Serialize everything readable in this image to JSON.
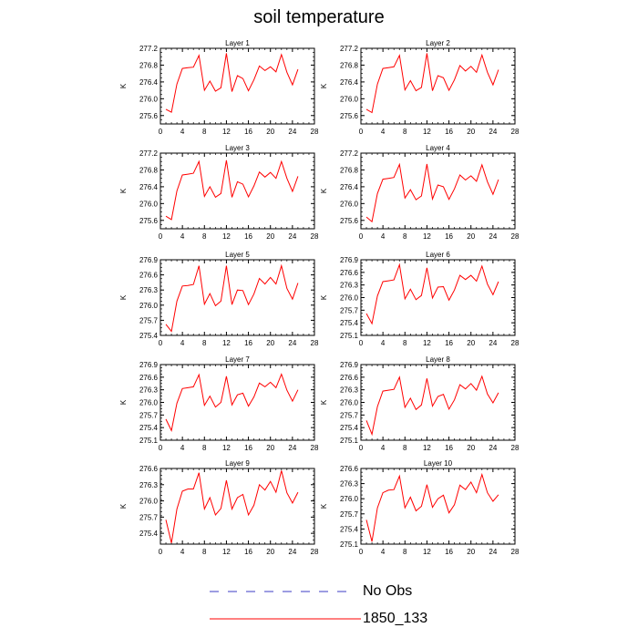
{
  "title": "soil temperature",
  "legend": [
    {
      "label": "No Obs",
      "color": "#3b3bc4",
      "style": "dashed"
    },
    {
      "label": "1850_133",
      "color": "#ff0000",
      "style": "solid"
    }
  ],
  "chart_data": [
    {
      "type": "line",
      "title": "Layer 1",
      "ylabel": "K",
      "xlabel": "",
      "xlim": [
        0,
        28
      ],
      "xticks": [
        0,
        4,
        8,
        12,
        16,
        20,
        24,
        28
      ],
      "ylim": [
        275.4,
        277.2
      ],
      "yticks": [
        275.6,
        276.0,
        276.4,
        276.8,
        277.2
      ],
      "ytick_labels": [
        "275.6",
        "276.0",
        "276.4",
        "276.8",
        "277.2"
      ],
      "series": [
        {
          "color": "#ff0000",
          "x": [
            1,
            2,
            3,
            4,
            5,
            6,
            7,
            8,
            9,
            10,
            11,
            12,
            13,
            14,
            15,
            16,
            17,
            18,
            19,
            20,
            21,
            22,
            23,
            24,
            25
          ],
          "y": [
            275.75,
            275.68,
            276.35,
            276.72,
            276.74,
            276.75,
            277.03,
            276.2,
            276.42,
            276.18,
            276.26,
            277.08,
            276.17,
            276.55,
            276.48,
            276.19,
            276.45,
            276.78,
            276.67,
            276.76,
            276.64,
            277.05,
            276.63,
            276.33,
            276.7
          ]
        }
      ]
    },
    {
      "type": "line",
      "title": "Layer 2",
      "ylabel": "K",
      "xlabel": "",
      "xlim": [
        0,
        28
      ],
      "xticks": [
        0,
        4,
        8,
        12,
        16,
        20,
        24,
        28
      ],
      "ylim": [
        275.4,
        277.2
      ],
      "yticks": [
        275.6,
        276.0,
        276.4,
        276.8,
        277.2
      ],
      "ytick_labels": [
        "275.6",
        "276.0",
        "276.4",
        "276.8",
        "277.2"
      ],
      "series": [
        {
          "color": "#ff0000",
          "x": [
            1,
            2,
            3,
            4,
            5,
            6,
            7,
            8,
            9,
            10,
            11,
            12,
            13,
            14,
            15,
            16,
            17,
            18,
            19,
            20,
            21,
            22,
            23,
            24,
            25
          ],
          "y": [
            275.75,
            275.67,
            276.35,
            276.72,
            276.74,
            276.76,
            277.03,
            276.21,
            276.43,
            276.19,
            276.27,
            277.08,
            276.19,
            276.55,
            276.5,
            276.2,
            276.45,
            276.79,
            276.66,
            276.77,
            276.63,
            277.04,
            276.63,
            276.33,
            276.69
          ]
        }
      ]
    },
    {
      "type": "line",
      "title": "Layer 3",
      "ylabel": "K",
      "xlabel": "",
      "xlim": [
        0,
        28
      ],
      "xticks": [
        0,
        4,
        8,
        12,
        16,
        20,
        24,
        28
      ],
      "ylim": [
        275.4,
        277.2
      ],
      "yticks": [
        275.6,
        276.0,
        276.4,
        276.8,
        277.2
      ],
      "ytick_labels": [
        "275.6",
        "276.0",
        "276.4",
        "276.8",
        "277.2"
      ],
      "series": [
        {
          "color": "#ff0000",
          "x": [
            1,
            2,
            3,
            4,
            5,
            6,
            7,
            8,
            9,
            10,
            11,
            12,
            13,
            14,
            15,
            16,
            17,
            18,
            19,
            20,
            21,
            22,
            23,
            24,
            25
          ],
          "y": [
            275.7,
            275.62,
            276.3,
            276.68,
            276.7,
            276.72,
            277.0,
            276.17,
            276.4,
            276.15,
            276.24,
            277.03,
            276.15,
            276.52,
            276.46,
            276.16,
            276.42,
            276.75,
            276.63,
            276.74,
            276.6,
            277.0,
            276.6,
            276.29,
            276.65
          ]
        }
      ]
    },
    {
      "type": "line",
      "title": "Layer 4",
      "ylabel": "K",
      "xlabel": "",
      "xlim": [
        0,
        28
      ],
      "xticks": [
        0,
        4,
        8,
        12,
        16,
        20,
        24,
        28
      ],
      "ylim": [
        275.4,
        277.2
      ],
      "yticks": [
        275.6,
        276.0,
        276.4,
        276.8,
        277.2
      ],
      "ytick_labels": [
        "275.6",
        "276.0",
        "276.4",
        "276.8",
        "277.2"
      ],
      "series": [
        {
          "color": "#ff0000",
          "x": [
            1,
            2,
            3,
            4,
            5,
            6,
            7,
            8,
            9,
            10,
            11,
            12,
            13,
            14,
            15,
            16,
            17,
            18,
            19,
            20,
            21,
            22,
            23,
            24,
            25
          ],
          "y": [
            275.68,
            275.57,
            276.24,
            276.58,
            276.6,
            276.62,
            276.93,
            276.13,
            276.33,
            276.09,
            276.18,
            276.94,
            276.11,
            276.44,
            276.4,
            276.1,
            276.35,
            276.68,
            276.56,
            276.66,
            276.53,
            276.92,
            276.52,
            276.22,
            276.57
          ]
        }
      ]
    },
    {
      "type": "line",
      "title": "Layer 5",
      "ylabel": "K",
      "xlabel": "",
      "xlim": [
        0,
        28
      ],
      "xticks": [
        0,
        4,
        8,
        12,
        16,
        20,
        24,
        28
      ],
      "ylim": [
        275.4,
        276.9
      ],
      "yticks": [
        275.4,
        275.7,
        276.0,
        276.3,
        276.6,
        276.9
      ],
      "ytick_labels": [
        "275.4",
        "275.7",
        "276.0",
        "276.3",
        "276.6",
        "276.9"
      ],
      "series": [
        {
          "color": "#ff0000",
          "x": [
            1,
            2,
            3,
            4,
            5,
            6,
            7,
            8,
            9,
            10,
            11,
            12,
            13,
            14,
            15,
            16,
            17,
            18,
            19,
            20,
            21,
            22,
            23,
            24,
            25
          ],
          "y": [
            275.62,
            275.48,
            276.08,
            276.38,
            276.39,
            276.41,
            276.78,
            276.02,
            276.23,
            275.99,
            276.08,
            276.78,
            276.01,
            276.3,
            276.29,
            276.01,
            276.22,
            276.53,
            276.42,
            276.55,
            276.42,
            276.78,
            276.33,
            276.12,
            276.44
          ]
        }
      ]
    },
    {
      "type": "line",
      "title": "Layer 6",
      "ylabel": "K",
      "xlabel": "",
      "xlim": [
        0,
        28
      ],
      "xticks": [
        0,
        4,
        8,
        12,
        16,
        20,
        24,
        28
      ],
      "ylim": [
        275.1,
        276.9
      ],
      "yticks": [
        275.1,
        275.4,
        275.7,
        276.0,
        276.3,
        276.6,
        276.9
      ],
      "ytick_labels": [
        "275.1",
        "275.4",
        "275.7",
        "276.0",
        "276.3",
        "276.6",
        "276.9"
      ],
      "series": [
        {
          "color": "#ff0000",
          "x": [
            1,
            2,
            3,
            4,
            5,
            6,
            7,
            8,
            9,
            10,
            11,
            12,
            13,
            14,
            15,
            16,
            17,
            18,
            19,
            20,
            21,
            22,
            23,
            24,
            25
          ],
          "y": [
            275.62,
            275.38,
            276.04,
            276.38,
            276.4,
            276.42,
            276.78,
            275.97,
            276.2,
            275.95,
            276.05,
            276.71,
            275.99,
            276.25,
            276.26,
            275.94,
            276.18,
            276.53,
            276.43,
            276.53,
            276.39,
            276.75,
            276.32,
            276.07,
            276.38
          ]
        }
      ]
    },
    {
      "type": "line",
      "title": "Layer 7",
      "ylabel": "K",
      "xlabel": "",
      "xlim": [
        0,
        28
      ],
      "xticks": [
        0,
        4,
        8,
        12,
        16,
        20,
        24,
        28
      ],
      "ylim": [
        275.1,
        276.9
      ],
      "yticks": [
        275.1,
        275.4,
        275.7,
        276.0,
        276.3,
        276.6,
        276.9
      ],
      "ytick_labels": [
        "275.1",
        "275.4",
        "275.7",
        "276.0",
        "276.3",
        "276.6",
        "276.9"
      ],
      "series": [
        {
          "color": "#ff0000",
          "x": [
            1,
            2,
            3,
            4,
            5,
            6,
            7,
            8,
            9,
            10,
            11,
            12,
            13,
            14,
            15,
            16,
            17,
            18,
            19,
            20,
            21,
            22,
            23,
            24,
            25
          ],
          "y": [
            275.6,
            275.33,
            275.98,
            276.33,
            276.35,
            276.37,
            276.66,
            275.93,
            276.15,
            275.89,
            276.0,
            276.62,
            275.94,
            276.18,
            276.22,
            275.91,
            276.13,
            276.46,
            276.37,
            276.48,
            276.35,
            276.67,
            276.29,
            276.03,
            276.3
          ]
        }
      ]
    },
    {
      "type": "line",
      "title": "Layer 8",
      "ylabel": "K",
      "xlabel": "",
      "xlim": [
        0,
        28
      ],
      "xticks": [
        0,
        4,
        8,
        12,
        16,
        20,
        24,
        28
      ],
      "ylim": [
        275.1,
        276.9
      ],
      "yticks": [
        275.1,
        275.4,
        275.7,
        276.0,
        276.3,
        276.6,
        276.9
      ],
      "ytick_labels": [
        "275.1",
        "275.4",
        "275.7",
        "276.0",
        "276.3",
        "276.6",
        "276.9"
      ],
      "series": [
        {
          "color": "#ff0000",
          "x": [
            1,
            2,
            3,
            4,
            5,
            6,
            7,
            8,
            9,
            10,
            11,
            12,
            13,
            14,
            15,
            16,
            17,
            18,
            19,
            20,
            21,
            22,
            23,
            24,
            25
          ],
          "y": [
            275.57,
            275.24,
            275.9,
            276.27,
            276.29,
            276.31,
            276.6,
            275.88,
            276.1,
            275.83,
            275.94,
            276.57,
            275.91,
            276.14,
            276.19,
            275.84,
            276.06,
            276.42,
            276.32,
            276.45,
            276.29,
            276.62,
            276.2,
            275.99,
            276.23
          ]
        }
      ]
    },
    {
      "type": "line",
      "title": "Layer 9",
      "ylabel": "K",
      "xlabel": "",
      "xlim": [
        0,
        28
      ],
      "xticks": [
        0,
        4,
        8,
        12,
        16,
        20,
        24,
        28
      ],
      "ylim": [
        275.2,
        276.6
      ],
      "yticks": [
        275.4,
        275.7,
        276.0,
        276.3,
        276.6
      ],
      "ytick_labels": [
        "275.4",
        "275.7",
        "276.0",
        "276.3",
        "276.6"
      ],
      "series": [
        {
          "color": "#ff0000",
          "x": [
            1,
            2,
            3,
            4,
            5,
            6,
            7,
            8,
            9,
            10,
            11,
            12,
            13,
            14,
            15,
            16,
            17,
            18,
            19,
            20,
            21,
            22,
            23,
            24,
            25
          ],
          "y": [
            275.65,
            275.22,
            275.85,
            276.18,
            276.22,
            276.22,
            276.52,
            275.85,
            276.06,
            275.74,
            275.86,
            276.38,
            275.85,
            276.06,
            276.12,
            275.74,
            275.92,
            276.3,
            276.2,
            276.36,
            276.16,
            276.56,
            276.15,
            275.96,
            276.16
          ]
        }
      ]
    },
    {
      "type": "line",
      "title": "Layer 10",
      "ylabel": "K",
      "xlabel": "",
      "xlim": [
        0,
        28
      ],
      "xticks": [
        0,
        4,
        8,
        12,
        16,
        20,
        24,
        28
      ],
      "ylim": [
        275.1,
        276.6
      ],
      "yticks": [
        275.1,
        275.4,
        275.7,
        276.0,
        276.3,
        276.6
      ],
      "ytick_labels": [
        "275.1",
        "275.4",
        "275.7",
        "276.0",
        "276.3",
        "276.6"
      ],
      "series": [
        {
          "color": "#ff0000",
          "x": [
            1,
            2,
            3,
            4,
            5,
            6,
            7,
            8,
            9,
            10,
            11,
            12,
            13,
            14,
            15,
            16,
            17,
            18,
            19,
            20,
            21,
            22,
            23,
            24,
            25
          ],
          "y": [
            275.58,
            275.15,
            275.82,
            276.12,
            276.17,
            276.18,
            276.45,
            275.82,
            276.03,
            275.76,
            275.85,
            276.28,
            275.83,
            276.0,
            276.07,
            275.72,
            275.88,
            276.27,
            276.18,
            276.33,
            276.12,
            276.48,
            276.12,
            275.95,
            276.08
          ]
        }
      ]
    }
  ]
}
